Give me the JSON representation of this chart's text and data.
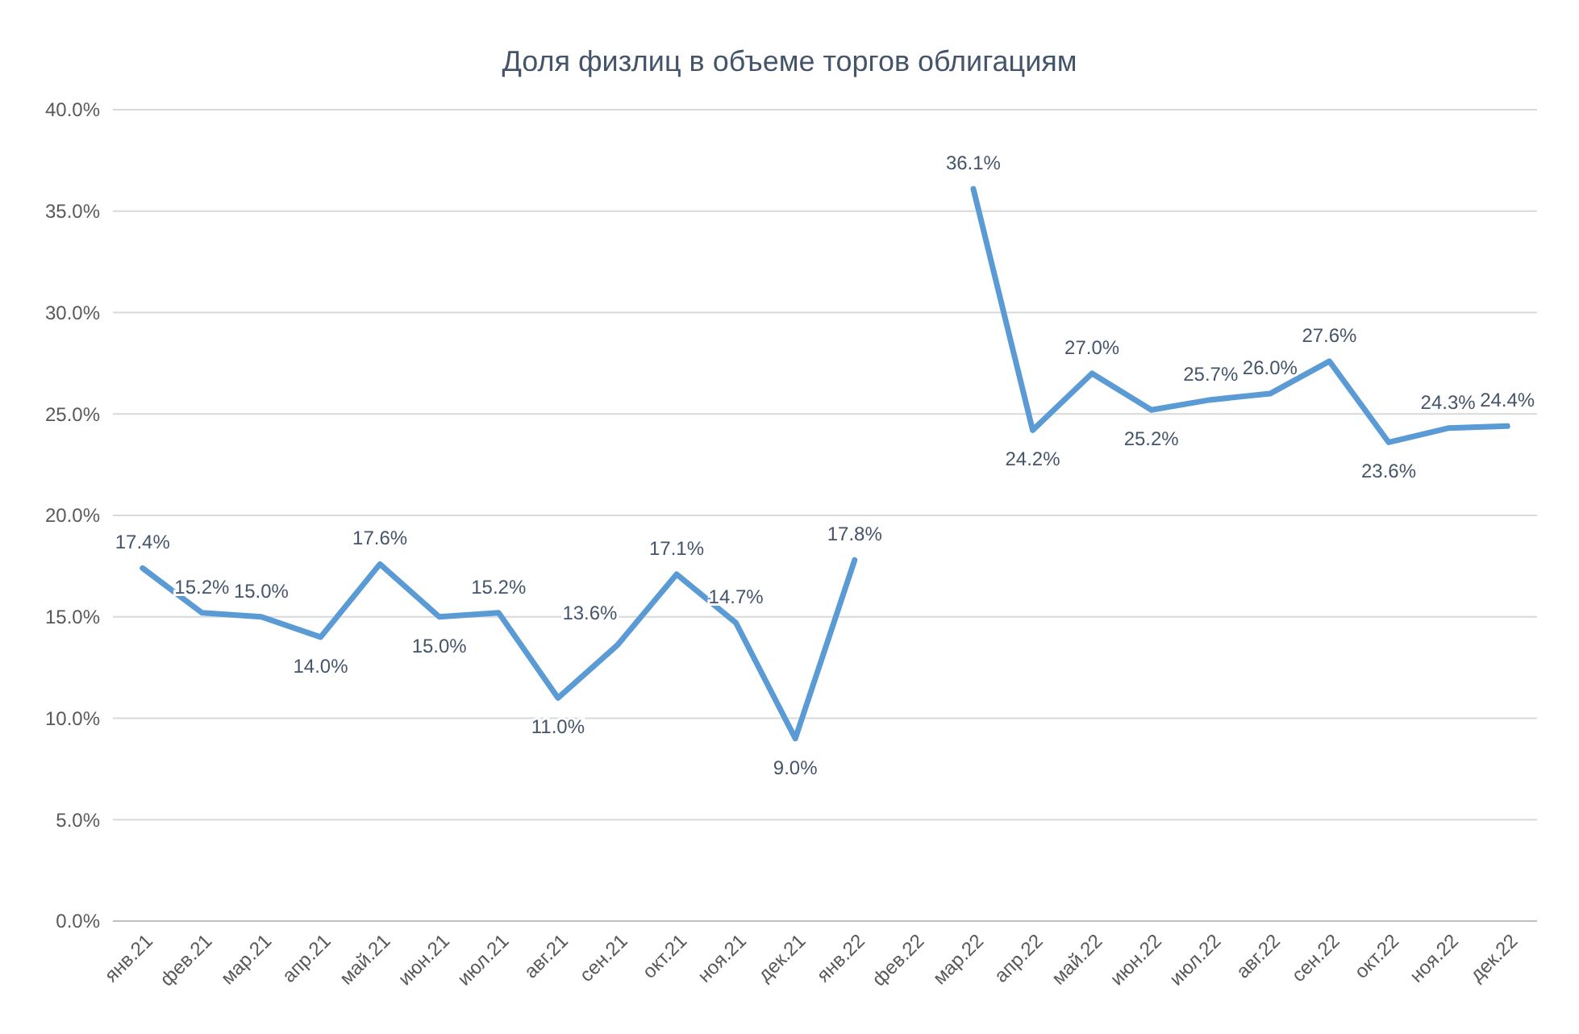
{
  "chart_data": {
    "type": "line",
    "title": "Доля физлиц в объеме торгов облигациям",
    "categories": [
      "янв.21",
      "фев.21",
      "мар.21",
      "апр.21",
      "май.21",
      "июн.21",
      "июл.21",
      "авг.21",
      "сен.21",
      "окт.21",
      "ноя.21",
      "дек.21",
      "янв.22",
      "фев.22",
      "мар.22",
      "апр.22",
      "май.22",
      "июн.22",
      "июл.22",
      "авг.22",
      "сен.22",
      "окт.22",
      "ноя.22",
      "дек.22"
    ],
    "series": [
      {
        "color": "#5b9bd5",
        "values": [
          17.4,
          15.2,
          15.0,
          14.0,
          17.6,
          15.0,
          15.2,
          11.0,
          13.6,
          17.1,
          14.7,
          9.0,
          17.8,
          null,
          36.1,
          24.2,
          27.0,
          25.2,
          25.7,
          26.0,
          27.6,
          23.6,
          24.3,
          24.4
        ],
        "value_labels": [
          "17.4%",
          "15.2%",
          "15.0%",
          "14.0%",
          "17.6%",
          "15.0%",
          "15.2%",
          "11.0%",
          "13.6%",
          "17.1%",
          "14.7%",
          "9.0%",
          "17.8%",
          null,
          "36.1%",
          "24.2%",
          "27.0%",
          "25.2%",
          "25.7%",
          "26.0%",
          "27.6%",
          "23.6%",
          "24.3%",
          "24.4%"
        ]
      }
    ],
    "ylim": [
      0,
      40
    ],
    "yticks": [
      {
        "value": 0,
        "label": "0.0%"
      },
      {
        "value": 5,
        "label": "5.0%"
      },
      {
        "value": 10,
        "label": "10.0%"
      },
      {
        "value": 15,
        "label": "15.0%"
      },
      {
        "value": 20,
        "label": "20.0%"
      },
      {
        "value": 25,
        "label": "25.0%"
      },
      {
        "value": 30,
        "label": "30.0%"
      },
      {
        "value": 35,
        "label": "35.0%"
      },
      {
        "value": 40,
        "label": "40.0%"
      }
    ],
    "grid": "y",
    "marker": "none",
    "line_style": "solid"
  }
}
